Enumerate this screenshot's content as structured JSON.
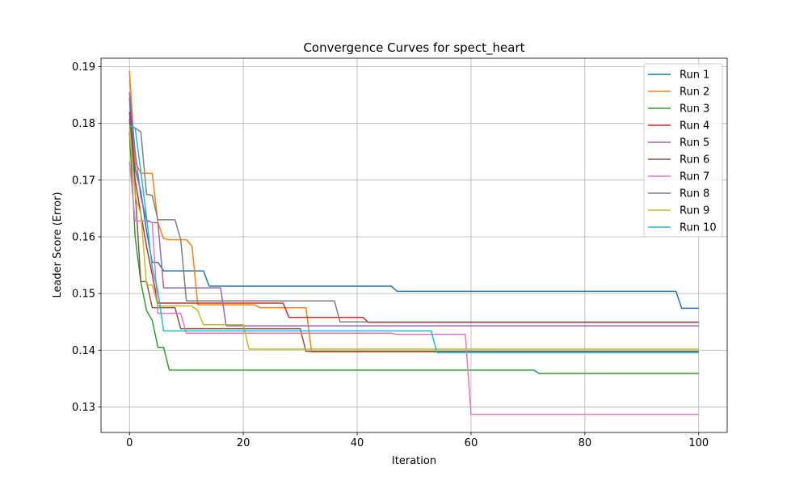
{
  "chart_data": {
    "type": "line",
    "title": "Convergence Curves for spect_heart",
    "xlabel": "Iteration",
    "ylabel": "Leader Score (Error)",
    "xlim": [
      -5,
      105
    ],
    "ylim": [
      0.1255,
      0.1915
    ],
    "xticks": [
      0,
      20,
      40,
      60,
      80,
      100
    ],
    "yticks": [
      0.13,
      0.14,
      0.15,
      0.16,
      0.17,
      0.18,
      0.19
    ],
    "xtick_labels": [
      "0",
      "20",
      "40",
      "60",
      "80",
      "100"
    ],
    "ytick_labels": [
      "0.13",
      "0.14",
      "0.15",
      "0.16",
      "0.17",
      "0.18",
      "0.19"
    ],
    "grid": true,
    "legend": "top-right",
    "series": [
      {
        "name": "Run 1",
        "color": "#1f77b4",
        "points": [
          [
            0,
            0.1845
          ],
          [
            1,
            0.172
          ],
          [
            2,
            0.168
          ],
          [
            3,
            0.161
          ],
          [
            4,
            0.1555
          ],
          [
            5,
            0.1555
          ],
          [
            6,
            0.154
          ],
          [
            12,
            0.154
          ],
          [
            13,
            0.154
          ],
          [
            14,
            0.1513
          ],
          [
            46,
            0.1513
          ],
          [
            47,
            0.1504
          ],
          [
            96,
            0.1504
          ],
          [
            97,
            0.1474
          ],
          [
            100,
            0.1474
          ]
        ]
      },
      {
        "name": "Run 2",
        "color": "#ff7f0e",
        "points": [
          [
            0,
            0.1893
          ],
          [
            1,
            0.1732
          ],
          [
            2,
            0.1712
          ],
          [
            4,
            0.1712
          ],
          [
            5,
            0.1625
          ],
          [
            6,
            0.1597
          ],
          [
            7,
            0.1595
          ],
          [
            10,
            0.1595
          ],
          [
            11,
            0.1583
          ],
          [
            12,
            0.148
          ],
          [
            22,
            0.148
          ],
          [
            23,
            0.1475
          ],
          [
            31,
            0.1475
          ],
          [
            32,
            0.1397
          ],
          [
            100,
            0.1397
          ]
        ]
      },
      {
        "name": "Run 3",
        "color": "#2ca02c",
        "points": [
          [
            0,
            0.1785
          ],
          [
            1,
            0.16
          ],
          [
            2,
            0.152
          ],
          [
            3,
            0.147
          ],
          [
            4,
            0.1453
          ],
          [
            5,
            0.1405
          ],
          [
            6,
            0.1405
          ],
          [
            7,
            0.1365
          ],
          [
            71,
            0.1365
          ],
          [
            72,
            0.1359
          ],
          [
            100,
            0.1359
          ]
        ]
      },
      {
        "name": "Run 4",
        "color": "#d62728",
        "points": [
          [
            0,
            0.182
          ],
          [
            1,
            0.17
          ],
          [
            2,
            0.164
          ],
          [
            3,
            0.1583
          ],
          [
            4,
            0.1533
          ],
          [
            5,
            0.1483
          ],
          [
            27,
            0.1483
          ],
          [
            28,
            0.1458
          ],
          [
            41,
            0.1458
          ],
          [
            42,
            0.1449
          ],
          [
            100,
            0.1449
          ]
        ]
      },
      {
        "name": "Run 5",
        "color": "#9467bd",
        "points": [
          [
            0,
            0.1855
          ],
          [
            1,
            0.175
          ],
          [
            2,
            0.167
          ],
          [
            3,
            0.163
          ],
          [
            4,
            0.1625
          ],
          [
            5,
            0.1625
          ],
          [
            6,
            0.151
          ],
          [
            16,
            0.151
          ],
          [
            17,
            0.1443
          ],
          [
            100,
            0.1443
          ]
        ]
      },
      {
        "name": "Run 6",
        "color": "#8c564b",
        "points": [
          [
            0,
            0.1808
          ],
          [
            1,
            0.168
          ],
          [
            2,
            0.1521
          ],
          [
            3,
            0.1521
          ],
          [
            4,
            0.1475
          ],
          [
            8,
            0.1475
          ],
          [
            9,
            0.1438
          ],
          [
            30,
            0.1438
          ],
          [
            31,
            0.1398
          ],
          [
            100,
            0.1398
          ]
        ]
      },
      {
        "name": "Run 7",
        "color": "#e377c2",
        "points": [
          [
            0,
            0.1733
          ],
          [
            1,
            0.1628
          ],
          [
            3,
            0.1628
          ],
          [
            4,
            0.1625
          ],
          [
            5,
            0.1465
          ],
          [
            9,
            0.1465
          ],
          [
            10,
            0.143
          ],
          [
            46,
            0.143
          ],
          [
            47,
            0.1428
          ],
          [
            59,
            0.1428
          ],
          [
            60,
            0.1287
          ],
          [
            100,
            0.1287
          ]
        ]
      },
      {
        "name": "Run 8",
        "color": "#7f7f7f",
        "points": [
          [
            0,
            0.1796
          ],
          [
            1,
            0.1792
          ],
          [
            2,
            0.1785
          ],
          [
            3,
            0.1675
          ],
          [
            4,
            0.1673
          ],
          [
            5,
            0.163
          ],
          [
            8,
            0.163
          ],
          [
            9,
            0.1595
          ],
          [
            10,
            0.1487
          ],
          [
            36,
            0.1487
          ],
          [
            37,
            0.145
          ],
          [
            100,
            0.145
          ]
        ]
      },
      {
        "name": "Run 9",
        "color": "#bcbd22",
        "points": [
          [
            0,
            0.1793
          ],
          [
            1,
            0.1672
          ],
          [
            2,
            0.164
          ],
          [
            3,
            0.1515
          ],
          [
            4,
            0.1515
          ],
          [
            5,
            0.1478
          ],
          [
            11,
            0.1478
          ],
          [
            12,
            0.147
          ],
          [
            13,
            0.1445
          ],
          [
            20,
            0.1445
          ],
          [
            21,
            0.1402
          ],
          [
            100,
            0.1402
          ]
        ]
      },
      {
        "name": "Run 10",
        "color": "#17becf",
        "points": [
          [
            0,
            0.1796
          ],
          [
            1,
            0.1792
          ],
          [
            2,
            0.1715
          ],
          [
            3,
            0.1635
          ],
          [
            4,
            0.1545
          ],
          [
            5,
            0.1505
          ],
          [
            6,
            0.1434
          ],
          [
            53,
            0.1434
          ],
          [
            54,
            0.1396
          ],
          [
            100,
            0.1396
          ]
        ]
      }
    ]
  }
}
